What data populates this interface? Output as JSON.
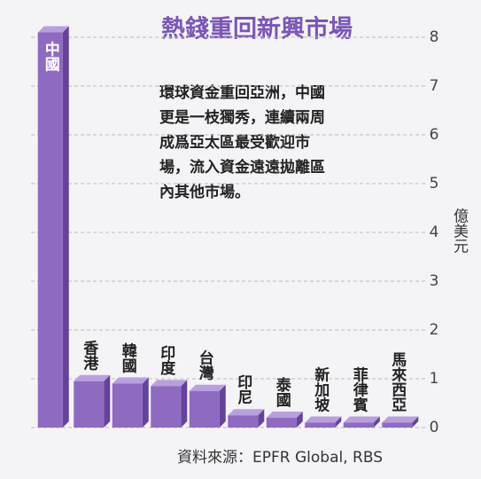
{
  "chart_data": {
    "type": "bar",
    "title": "熱錢重回新興市場",
    "categories": [
      "中國",
      "香港",
      "韓國",
      "印度",
      "台灣",
      "印尼",
      "泰國",
      "新加坡",
      "菲律賓",
      "馬來西亞"
    ],
    "values": [
      8.1,
      0.95,
      0.9,
      0.85,
      0.75,
      0.25,
      0.2,
      0.1,
      0.1,
      0.1
    ],
    "color": "#8e6bc0",
    "ylim": [
      0,
      8
    ],
    "yticks": [
      0,
      1,
      2,
      3,
      4,
      5,
      6,
      7,
      8
    ],
    "grid": true,
    "y_axis_label": "億美元",
    "annotation": [
      "環球資金重回亞洲，中國",
      "更是一枝獨秀，連續兩周",
      "成爲亞太區最受歡迎市",
      "場，流入資金遠遠拋離區",
      "內其他市場。"
    ],
    "source": "資料來源：EPFR Global, RBS"
  }
}
